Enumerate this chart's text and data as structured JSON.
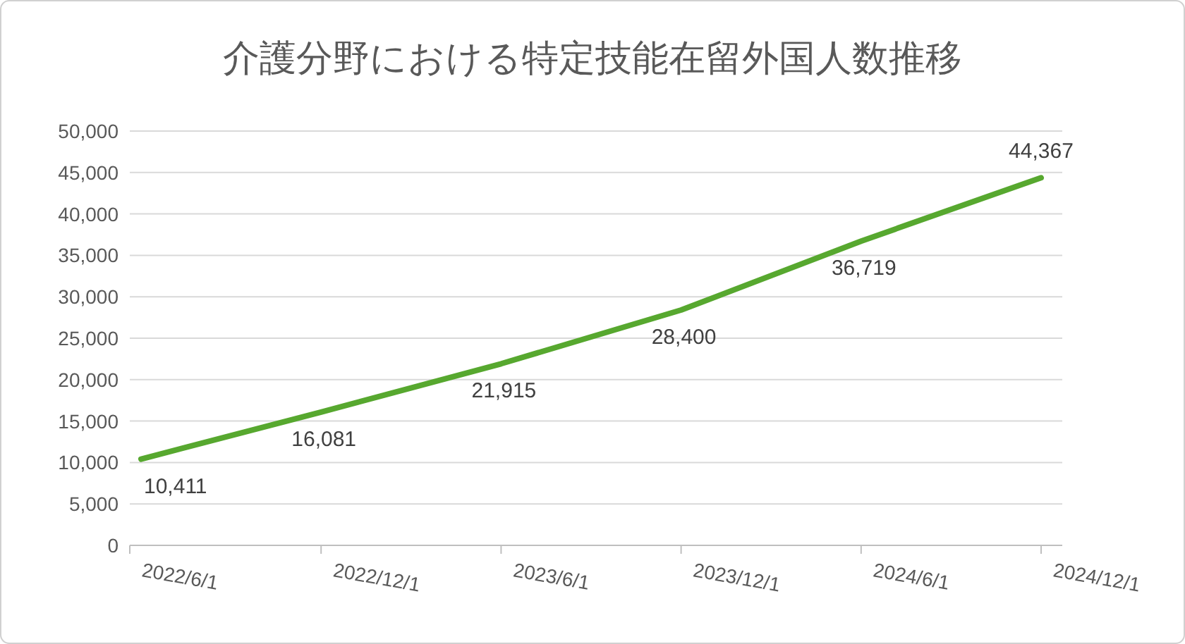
{
  "chart_data": {
    "type": "line",
    "title": "介護分野における特定技能在留外国人数推移",
    "categories": [
      "2022/6/1",
      "2022/12/1",
      "2023/6/1",
      "2023/12/1",
      "2024/6/1",
      "2024/12/1"
    ],
    "values": [
      10411,
      16081,
      21915,
      28400,
      36719,
      44367
    ],
    "value_labels": [
      "10,411",
      "16,081",
      "21,915",
      "28,400",
      "36,719",
      "44,367"
    ],
    "color": "#57a82f",
    "ylim": [
      0,
      50000
    ],
    "yticks": [
      {
        "value": 0,
        "label": "0"
      },
      {
        "value": 5000,
        "label": "5,000"
      },
      {
        "value": 10000,
        "label": "10,000"
      },
      {
        "value": 15000,
        "label": "15,000"
      },
      {
        "value": 20000,
        "label": "20,000"
      },
      {
        "value": 25000,
        "label": "25,000"
      },
      {
        "value": 30000,
        "label": "30,000"
      },
      {
        "value": 35000,
        "label": "35,000"
      },
      {
        "value": 40000,
        "label": "40,000"
      },
      {
        "value": 45000,
        "label": "45,000"
      },
      {
        "value": 50000,
        "label": "50,000"
      }
    ],
    "grid": "y",
    "marker": "none",
    "line_style": "solid"
  }
}
